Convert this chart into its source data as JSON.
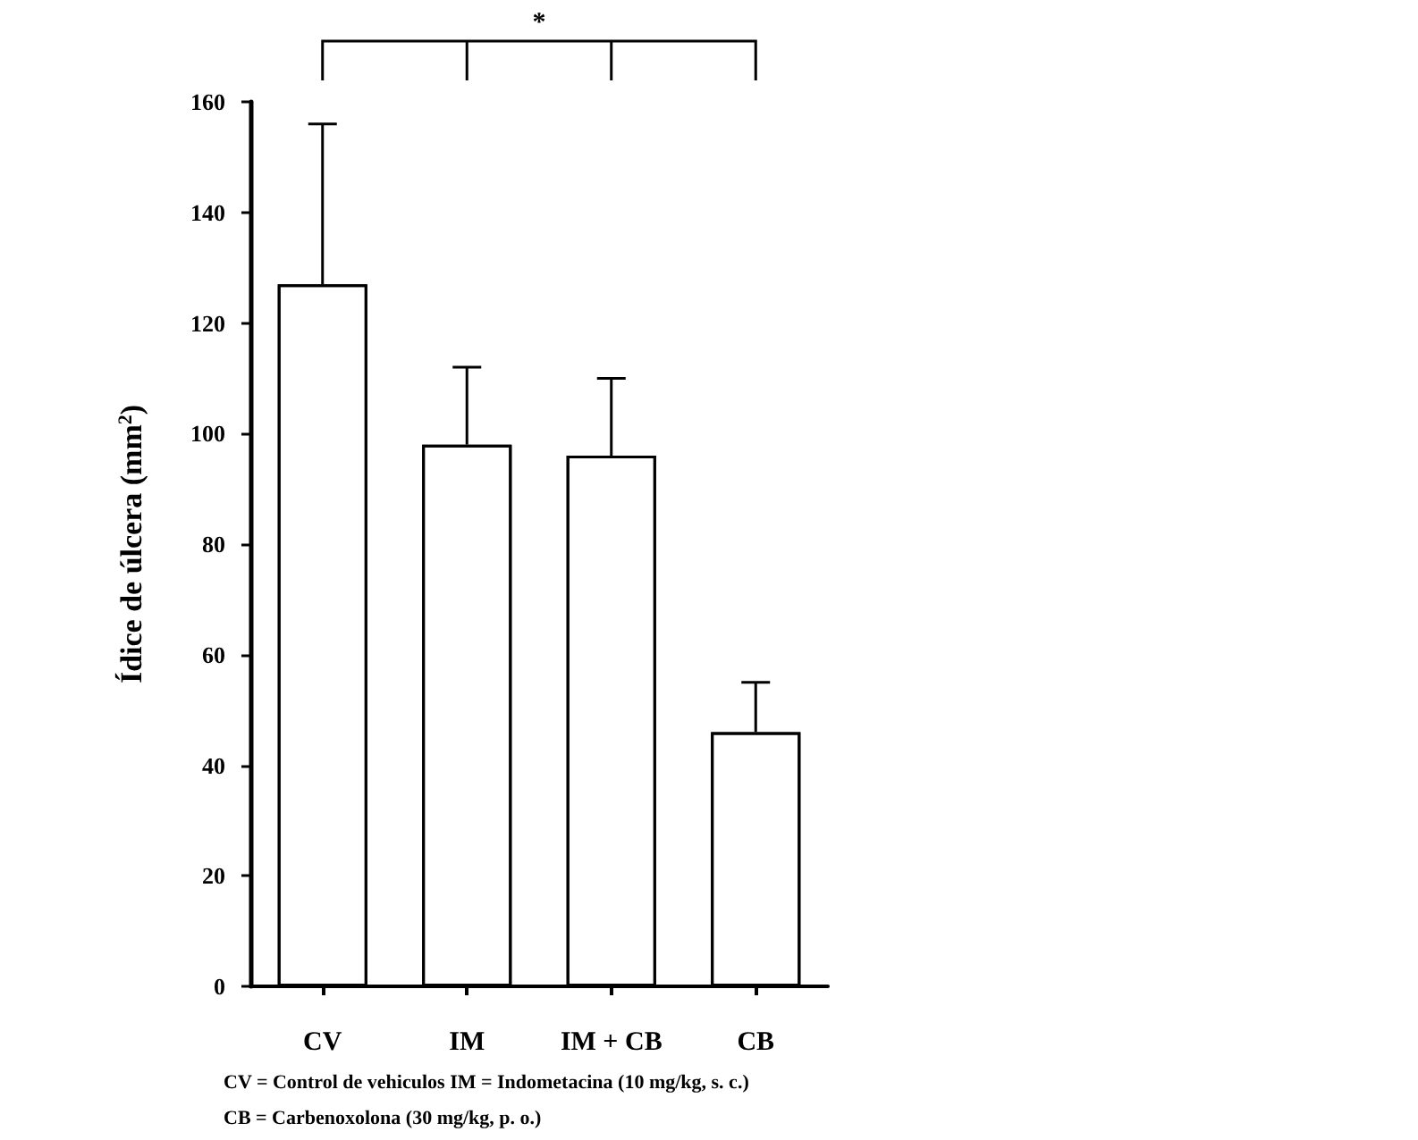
{
  "chart_data": {
    "type": "bar",
    "ylabel": "Ídice de úlcera (mm$^{2}$)",
    "categories": [
      "CV",
      "IM",
      "IM + CB",
      "CB"
    ],
    "values": [
      127,
      98,
      96,
      46
    ],
    "errors": [
      29,
      14,
      14,
      9
    ],
    "color": "#ffffff",
    "ylim": [
      0,
      160
    ],
    "yticks": [
      0,
      20,
      40,
      60,
      80,
      100,
      120,
      140,
      160
    ],
    "grid": false,
    "annotations": [
      "*",
      "CV = Control de vehiculos  IM = Indometacina (10 mg/kg, s. c.)",
      "CB = Carbenoxolona (30 mg/kg, p. o.)"
    ]
  }
}
